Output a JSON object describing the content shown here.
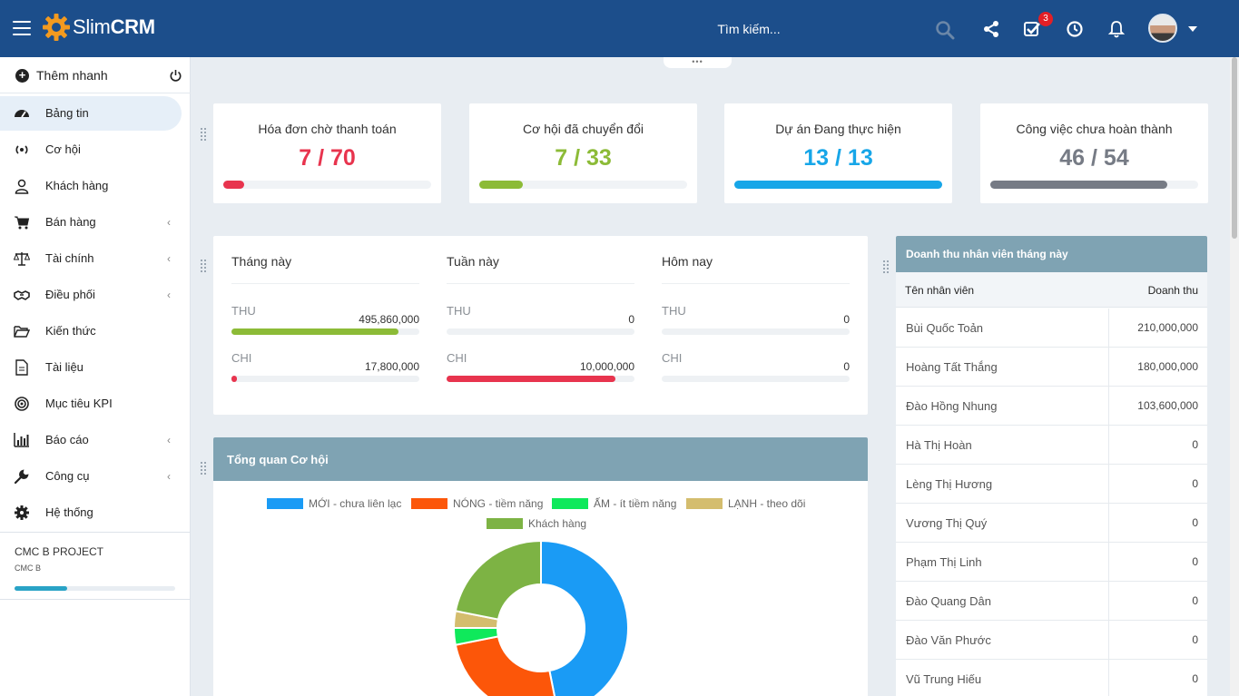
{
  "app": {
    "logo_light": "Slim",
    "logo_bold": "CRM"
  },
  "search": {
    "placeholder": "Tìm kiếm..."
  },
  "header": {
    "tasks_badge": "3"
  },
  "sidebar": {
    "quick_add": "Thêm nhanh",
    "items": [
      {
        "label": "Bảng tin",
        "icon": "dashboard-icon",
        "active": true
      },
      {
        "label": "Cơ hội",
        "icon": "phone-signal-icon"
      },
      {
        "label": "Khách hàng",
        "icon": "user-icon"
      },
      {
        "label": "Bán hàng",
        "icon": "cart-icon",
        "submenu": true
      },
      {
        "label": "Tài chính",
        "icon": "scale-icon",
        "submenu": true
      },
      {
        "label": "Điều phối",
        "icon": "handshake-icon",
        "submenu": true
      },
      {
        "label": "Kiến thức",
        "icon": "folder-open-icon"
      },
      {
        "label": "Tài liệu",
        "icon": "document-icon"
      },
      {
        "label": "Mục tiêu KPI",
        "icon": "target-icon"
      },
      {
        "label": "Báo cáo",
        "icon": "bar-chart-icon",
        "submenu": true
      },
      {
        "label": "Công cụ",
        "icon": "wrench-icon",
        "submenu": true
      },
      {
        "label": "Hệ thống",
        "icon": "gear-icon"
      }
    ],
    "project": {
      "name": "CMC B PROJECT",
      "sub": "CMC B",
      "progress": 0.33
    }
  },
  "stats": [
    {
      "title": "Hóa đơn chờ thanh toán",
      "value": "7 / 70",
      "progress": 0.1,
      "color": "#e8344e"
    },
    {
      "title": "Cơ hội đã chuyển đổi",
      "value": "7 / 33",
      "progress": 0.21,
      "color": "#8cbb37"
    },
    {
      "title": "Dự án Đang thực hiện",
      "value": "13 / 13",
      "progress": 1.0,
      "color": "#17a6e8"
    },
    {
      "title": "Công việc chưa hoàn thành",
      "value": "46 / 54",
      "progress": 0.85,
      "color": "#767b85"
    }
  ],
  "finance": {
    "in_label": "THU",
    "out_label": "CHI",
    "columns": [
      {
        "title": "Tháng này",
        "thu": "495,860,000",
        "chi": "17,800,000",
        "thu_progress": 0.89,
        "chi_progress": 0.03
      },
      {
        "title": "Tuần này",
        "thu": "0",
        "chi": "10,000,000",
        "thu_progress": 0,
        "chi_progress": 0.9
      },
      {
        "title": "Hôm nay",
        "thu": "0",
        "chi": "0",
        "thu_progress": 0,
        "chi_progress": 0
      }
    ]
  },
  "opportunities": {
    "title": "Tổng quan Cơ hội",
    "legend": [
      {
        "label": "MỚI - chưa liên lạc",
        "color": "#1a9bf5"
      },
      {
        "label": "NÓNG - tiềm năng",
        "color": "#fc5609"
      },
      {
        "label": "ẤM - ít tiềm năng",
        "color": "#0fe95b"
      },
      {
        "label": "LẠNH - theo dõi",
        "color": "#d4bd6e"
      },
      {
        "label": "Khách hàng",
        "color": "#7db344"
      }
    ]
  },
  "chart_data": {
    "type": "pie",
    "title": "Tổng quan Cơ hội",
    "categories": [
      "MỚI - chưa liên lạc",
      "NÓNG - tiềm năng",
      "ẤM - ít tiềm năng",
      "LẠNH - theo dõi",
      "Khách hàng"
    ],
    "values": [
      15,
      8,
      1,
      1,
      7
    ]
  },
  "revenue": {
    "title": "Doanh thu nhân viên tháng này",
    "col_name": "Tên nhân viên",
    "col_amount": "Doanh thu",
    "rows": [
      {
        "name": "Bùi Quốc Toản",
        "amount": "210,000,000"
      },
      {
        "name": "Hoàng Tất Thắng",
        "amount": "180,000,000"
      },
      {
        "name": "Đào Hồng Nhung",
        "amount": "103,600,000"
      },
      {
        "name": "Hà Thị Hoàn",
        "amount": "0"
      },
      {
        "name": "Lèng Thị Hương",
        "amount": "0"
      },
      {
        "name": "Vương Thị Quý",
        "amount": "0"
      },
      {
        "name": "Phạm Thị Linh",
        "amount": "0"
      },
      {
        "name": "Đào Quang Dân",
        "amount": "0"
      },
      {
        "name": "Đào Văn Phước",
        "amount": "0"
      },
      {
        "name": "Vũ Trung Hiếu",
        "amount": "0"
      }
    ]
  }
}
